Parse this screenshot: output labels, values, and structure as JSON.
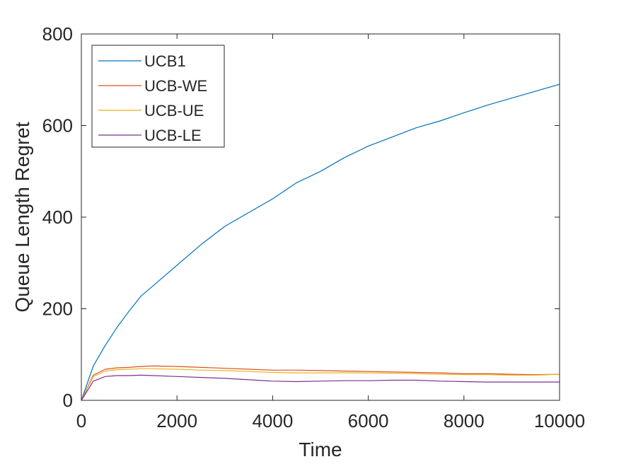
{
  "chart_data": {
    "type": "line",
    "title": "",
    "xlabel": "Time",
    "ylabel": "Queue Length Regret",
    "xlim": [
      0,
      10000
    ],
    "ylim": [
      0,
      800
    ],
    "xticks": [
      0,
      2000,
      4000,
      6000,
      8000,
      10000
    ],
    "yticks": [
      0,
      200,
      400,
      600,
      800
    ],
    "grid": false,
    "legend_position": "top-left",
    "x": [
      0,
      250,
      500,
      750,
      1000,
      1250,
      1500,
      2000,
      2500,
      3000,
      3500,
      4000,
      4500,
      5000,
      5500,
      6000,
      6500,
      7000,
      7500,
      8000,
      8500,
      9000,
      9500,
      10000
    ],
    "series": [
      {
        "name": "UCB1",
        "color": "#0072BD",
        "values": [
          0,
          75,
          120,
          160,
          195,
          228,
          250,
          295,
          340,
          380,
          410,
          440,
          475,
          500,
          530,
          555,
          575,
          595,
          610,
          628,
          645,
          660,
          675,
          690
        ]
      },
      {
        "name": "UCB-WE",
        "color": "#D95319",
        "values": [
          0,
          55,
          68,
          71,
          72,
          74,
          75,
          74,
          72,
          70,
          68,
          66,
          66,
          65,
          64,
          63,
          62,
          61,
          60,
          58,
          58,
          57,
          56,
          57
        ]
      },
      {
        "name": "UCB-UE",
        "color": "#EDB120",
        "values": [
          0,
          52,
          64,
          67,
          68,
          69,
          69,
          68,
          66,
          65,
          63,
          61,
          60,
          60,
          60,
          60,
          59,
          58,
          57,
          56,
          56,
          55,
          55,
          57
        ]
      },
      {
        "name": "UCB-LE",
        "color": "#7E2F8E",
        "values": [
          0,
          42,
          52,
          54,
          54,
          55,
          54,
          52,
          50,
          48,
          45,
          42,
          41,
          42,
          43,
          43,
          44,
          44,
          42,
          41,
          40,
          40,
          40,
          40
        ]
      }
    ]
  }
}
